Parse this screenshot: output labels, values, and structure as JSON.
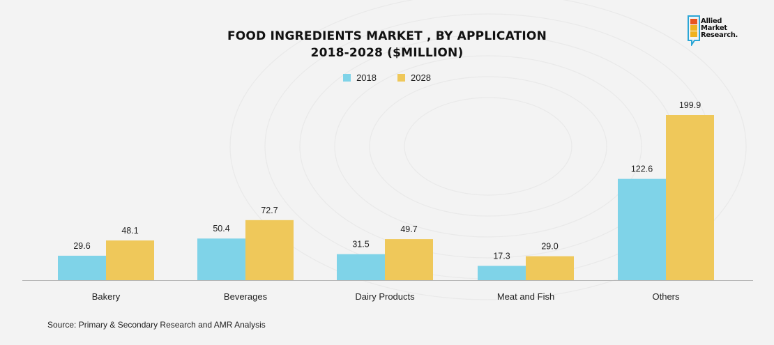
{
  "chart": {
    "title_line1": "FOOD INGREDIENTS MARKET , BY APPLICATION",
    "title_line2": "2018-2028 ($MILLION)",
    "source": "Source: Primary & Secondary Research and AMR Analysis"
  },
  "logo": {
    "line1": "Allied",
    "line2": "Market",
    "line3": "Research.",
    "colors": [
      "#e8541f",
      "#f0b21f",
      "#2ba6d6"
    ]
  },
  "colors": {
    "series_2018": "#7fd3e8",
    "series_2028": "#efc85a",
    "axis": "#b5b5b5",
    "background": "#f3f3f3"
  },
  "chart_data": {
    "type": "bar",
    "title": "FOOD INGREDIENTS MARKET , BY APPLICATION 2018-2028 ($MILLION)",
    "categories": [
      "Bakery",
      "Beverages",
      "Dairy Products",
      "Meat and Fish",
      "Others"
    ],
    "series": [
      {
        "name": "2018",
        "values": [
          29.6,
          50.4,
          31.5,
          17.3,
          122.6
        ]
      },
      {
        "name": "2028",
        "values": [
          48.1,
          72.7,
          49.7,
          29.0,
          199.9
        ]
      }
    ],
    "value_labels": [
      [
        "29.6",
        "50.4",
        "31.5",
        "17.3",
        "122.6"
      ],
      [
        "48.1",
        "72.7",
        "49.7",
        "29.0",
        "199.9"
      ]
    ],
    "xlabel": "",
    "ylabel": "",
    "ylim": [
      0,
      200
    ],
    "grid": false,
    "legend_position": "top-center"
  }
}
